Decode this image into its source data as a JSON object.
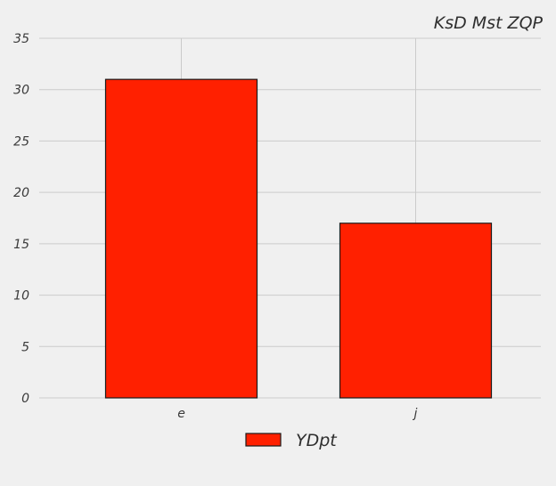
{
  "chart_data": {
    "type": "bar",
    "title": "KsD Mst ZQP",
    "xlabel": "",
    "ylabel": "",
    "categories": [
      "e",
      "j"
    ],
    "series": [
      {
        "name": "YDpt",
        "values": [
          31,
          17
        ],
        "color": "#ff2000",
        "edge_color": "#1a1a1a"
      }
    ],
    "ylim": [
      0,
      35
    ],
    "yticks": [
      0,
      5,
      10,
      15,
      20,
      25,
      30,
      35
    ],
    "grid": true,
    "legend_position": "bottom-center",
    "grid_color": "#cbcbcb",
    "background_color": "#f0f0f0"
  }
}
